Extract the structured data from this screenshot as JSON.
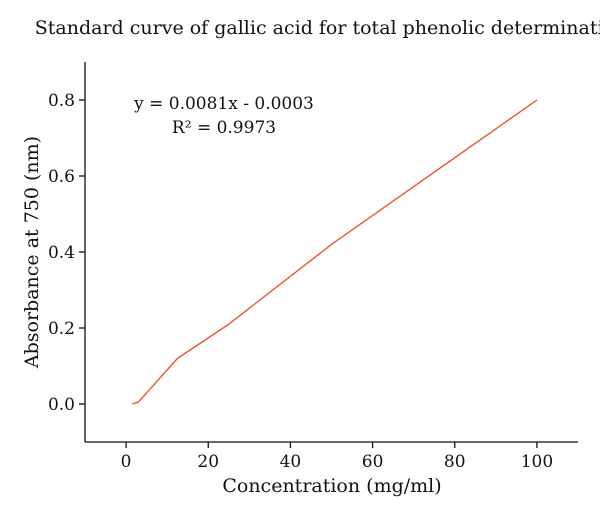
{
  "chart_data": {
    "type": "line",
    "title": "Standard curve of gallic acid for total phenolic determination",
    "xlabel": "Concentration (mg/ml)",
    "ylabel": "Absorbance at 750 (nm)",
    "xlim": [
      -10,
      110
    ],
    "ylim": [
      -0.1,
      0.9
    ],
    "xticks": [
      0,
      20,
      40,
      60,
      80,
      100
    ],
    "xtick_labels": [
      "0",
      "20",
      "40",
      "60",
      "80",
      "100"
    ],
    "yticks": [
      0.0,
      0.2,
      0.4,
      0.6,
      0.8
    ],
    "ytick_labels": [
      "0.0",
      "0.2",
      "0.4",
      "0.6",
      "0.8"
    ],
    "grid": false,
    "series": [
      {
        "color": "#f04a1e",
        "x": [
          1.5,
          3,
          12.5,
          25,
          50,
          100
        ],
        "y": [
          0.0,
          0.005,
          0.12,
          0.21,
          0.42,
          0.8
        ]
      }
    ],
    "annotations": [
      {
        "text": "y = 0.0081x - 0.0003"
      },
      {
        "text": "R² = 0.9973"
      }
    ]
  }
}
